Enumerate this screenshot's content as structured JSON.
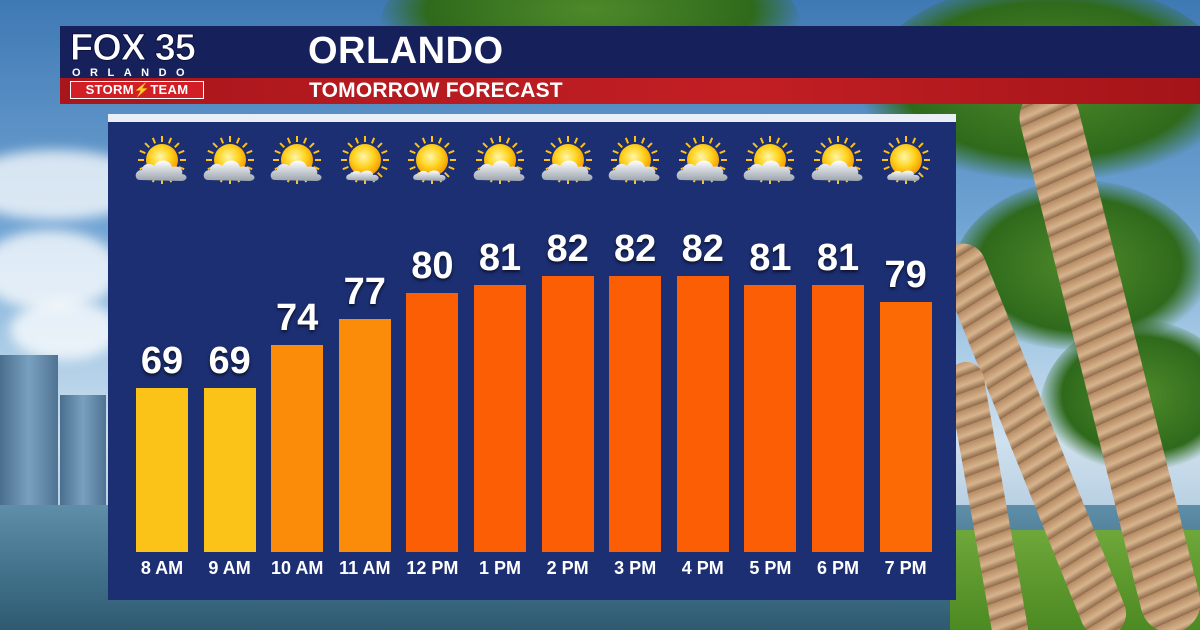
{
  "header": {
    "logo": {
      "brand": "FOX 35",
      "city": "ORLANDO",
      "team": "STORM⚡TEAM"
    },
    "title": "ORLANDO",
    "subtitle": "TOMORROW FORECAST"
  },
  "colors": {
    "navy": "#16205a",
    "red": "#c21f24",
    "panel": "#1c2f73",
    "bar_yellow": "#fbc317",
    "bar_amber": "#fb8c0a",
    "bar_orange": "#fb5e05"
  },
  "chart_data": {
    "type": "bar",
    "title": "",
    "xlabel": "",
    "ylabel": "",
    "categories": [
      "8 AM",
      "9 AM",
      "10 AM",
      "11 AM",
      "12 PM",
      "1 PM",
      "2 PM",
      "3 PM",
      "4 PM",
      "5 PM",
      "6 PM",
      "7 PM"
    ],
    "values": [
      69,
      69,
      74,
      77,
      80,
      81,
      82,
      82,
      82,
      81,
      81,
      79
    ],
    "icons": [
      "partly-cloudy-icon",
      "partly-cloudy-icon",
      "partly-cloudy-icon",
      "mostly-sunny-icon",
      "mostly-sunny-icon",
      "partly-cloudy-icon",
      "partly-cloudy-icon",
      "partly-cloudy-icon",
      "partly-cloudy-icon",
      "partly-cloudy-icon",
      "partly-cloudy-icon",
      "mostly-sunny-icon"
    ],
    "bar_colors": [
      "#fbc317",
      "#fbc317",
      "#fb8c0a",
      "#fb8c0a",
      "#fb5e05",
      "#fb5e05",
      "#fb5e05",
      "#fb5e05",
      "#fb5e05",
      "#fb5e05",
      "#fb5e05",
      "#fb6a05"
    ],
    "ylim": [
      50,
      82
    ],
    "grid": false,
    "legend": "none"
  }
}
